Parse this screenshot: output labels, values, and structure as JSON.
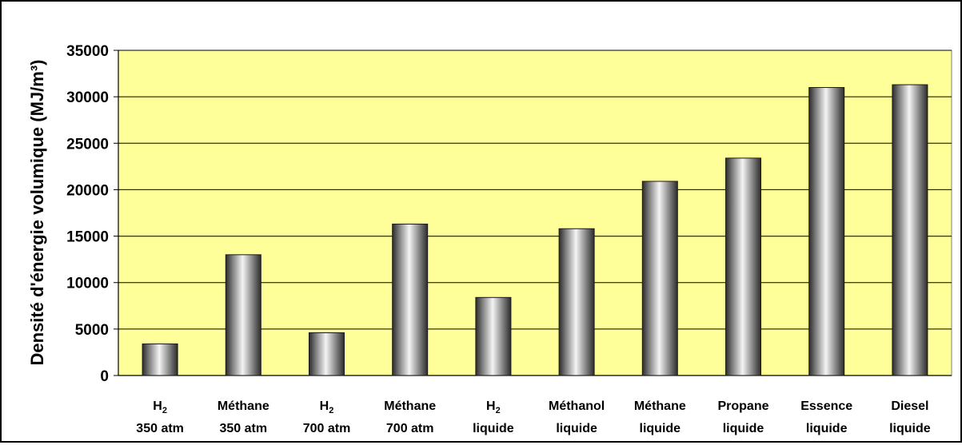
{
  "chart_data": {
    "type": "bar",
    "title": "",
    "xlabel": "",
    "ylabel": "Densité d'énergie volumique (MJ/m³)",
    "ylim": [
      0,
      35000
    ],
    "yticks": [
      0,
      5000,
      10000,
      15000,
      20000,
      25000,
      30000,
      35000
    ],
    "grid": true,
    "legend": "none",
    "plot_background": "#ffff99",
    "bar_color": "#a0a0a0",
    "categories": [
      {
        "base": "H",
        "sub": "2",
        "line2": "350 atm"
      },
      {
        "base": "Méthane",
        "sub": "",
        "line2": "350 atm"
      },
      {
        "base": "H",
        "sub": "2",
        "line2": "700 atm"
      },
      {
        "base": "Méthane",
        "sub": "",
        "line2": "700 atm"
      },
      {
        "base": "H",
        "sub": "2",
        "line2": "liquide"
      },
      {
        "base": "Méthanol",
        "sub": "",
        "line2": "liquide"
      },
      {
        "base": "Méthane",
        "sub": "",
        "line2": "liquide"
      },
      {
        "base": "Propane",
        "sub": "",
        "line2": "liquide"
      },
      {
        "base": "Essence",
        "sub": "",
        "line2": "liquide"
      },
      {
        "base": "Diesel",
        "sub": "",
        "line2": "liquide"
      }
    ],
    "values": [
      3400,
      13000,
      4600,
      16300,
      8400,
      15800,
      20900,
      23400,
      31000,
      31300
    ]
  }
}
